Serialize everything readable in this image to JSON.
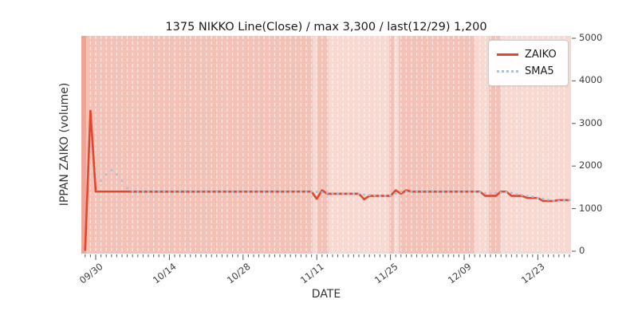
{
  "page": {
    "background": "#ffffff"
  },
  "chart_data": {
    "type": "line",
    "title": "1375 NIKKO Line(Close) / max 3,300 / last(12/29) 1,200",
    "xlabel": "DATE",
    "ylabel": "IPPAN ZAIKO (volume)",
    "stats": {
      "symbol": "1375",
      "name": "NIKKO",
      "price_field": "Line(Close)",
      "max": "3,300",
      "last_date": "12/29",
      "last_value": "1,200"
    },
    "ylim": [
      0,
      5000
    ],
    "yticks": [
      0,
      1000,
      2000,
      3000,
      4000,
      5000
    ],
    "x_unit": "days since 09/28",
    "x_domain_days": [
      0,
      92
    ],
    "x_major_ticks": [
      {
        "day": 2,
        "label": "09/30"
      },
      {
        "day": 16,
        "label": "10/14"
      },
      {
        "day": 30,
        "label": "10/28"
      },
      {
        "day": 44,
        "label": "11/11"
      },
      {
        "day": 58,
        "label": "11/25"
      },
      {
        "day": 72,
        "label": "12/09"
      },
      {
        "day": 86,
        "label": "12/23"
      }
    ],
    "grid": "vertical-daily-dashed",
    "gridline_color": "rgba(255,255,255,0.7)",
    "plot_background": "#e8e8e8",
    "band_colors": {
      "edge": "#f0a496",
      "medium": "#f3c1b6",
      "light": "#f8d9d1"
    },
    "background_bands": [
      {
        "start_day": -0.8,
        "end_day": 0.2,
        "shade": "edge"
      },
      {
        "start_day": 0.2,
        "end_day": 43.2,
        "shade": "medium"
      },
      {
        "start_day": 43.2,
        "end_day": 44.1,
        "shade": "light"
      },
      {
        "start_day": 44.1,
        "end_day": 46.2,
        "shade": "medium"
      },
      {
        "start_day": 46.2,
        "end_day": 57.8,
        "shade": "light"
      },
      {
        "start_day": 57.8,
        "end_day": 58.7,
        "shade": "medium"
      },
      {
        "start_day": 58.7,
        "end_day": 59.6,
        "shade": "light"
      },
      {
        "start_day": 59.6,
        "end_day": 74.0,
        "shade": "medium"
      },
      {
        "start_day": 74.0,
        "end_day": 76.7,
        "shade": "light"
      },
      {
        "start_day": 76.7,
        "end_day": 79.0,
        "shade": "medium"
      },
      {
        "start_day": 79.0,
        "end_day": 92.3,
        "shade": "light"
      }
    ],
    "legend": {
      "position": "upper-right",
      "entries": [
        {
          "label": "ZAIKO",
          "color": "#e2462c",
          "style": "solid"
        },
        {
          "label": "SMA5",
          "color": "#a4c2de",
          "style": "dotted"
        }
      ]
    },
    "series": [
      {
        "name": "ZAIKO",
        "style": "solid",
        "color": "#e2462c",
        "points": [
          [
            0,
            30
          ],
          [
            1,
            3300
          ],
          [
            2,
            1400
          ],
          [
            43,
            1400
          ],
          [
            44,
            1230
          ],
          [
            45,
            1430
          ],
          [
            46,
            1350
          ],
          [
            52,
            1350
          ],
          [
            53,
            1220
          ],
          [
            54,
            1300
          ],
          [
            58,
            1300
          ],
          [
            59,
            1430
          ],
          [
            60,
            1350
          ],
          [
            61,
            1430
          ],
          [
            62,
            1400
          ],
          [
            75,
            1400
          ],
          [
            76,
            1300
          ],
          [
            78,
            1300
          ],
          [
            79,
            1400
          ],
          [
            80,
            1400
          ],
          [
            81,
            1300
          ],
          [
            83,
            1300
          ],
          [
            84,
            1250
          ],
          [
            86,
            1250
          ],
          [
            87,
            1180
          ],
          [
            89,
            1180
          ],
          [
            90,
            1200
          ],
          [
            92,
            1200
          ]
        ]
      },
      {
        "name": "SMA5",
        "style": "dotted",
        "color": "#a4c2de",
        "points": [
          [
            3,
            1650
          ],
          [
            4,
            1800
          ],
          [
            5,
            1900
          ],
          [
            6,
            1800
          ],
          [
            7,
            1650
          ],
          [
            8,
            1480
          ],
          [
            9,
            1410
          ],
          [
            43,
            1400
          ],
          [
            44,
            1395
          ],
          [
            45,
            1380
          ],
          [
            47,
            1360
          ],
          [
            52,
            1350
          ],
          [
            53,
            1330
          ],
          [
            54,
            1320
          ],
          [
            56,
            1300
          ],
          [
            58,
            1310
          ],
          [
            59,
            1350
          ],
          [
            60,
            1390
          ],
          [
            61,
            1400
          ],
          [
            62,
            1410
          ],
          [
            74,
            1400
          ],
          [
            75,
            1390
          ],
          [
            76,
            1360
          ],
          [
            77,
            1350
          ],
          [
            78,
            1360
          ],
          [
            79,
            1375
          ],
          [
            80,
            1385
          ],
          [
            81,
            1370
          ],
          [
            82,
            1340
          ],
          [
            83,
            1320
          ],
          [
            84,
            1300
          ],
          [
            85,
            1280
          ],
          [
            86,
            1250
          ],
          [
            87,
            1230
          ],
          [
            88,
            1210
          ],
          [
            89,
            1190
          ],
          [
            90,
            1180
          ],
          [
            91,
            1190
          ],
          [
            92,
            1210
          ]
        ]
      }
    ]
  },
  "colors": {
    "text": "#1a1a1a",
    "tick_text": "#3d3d3d",
    "legend_border": "#cccccc"
  }
}
